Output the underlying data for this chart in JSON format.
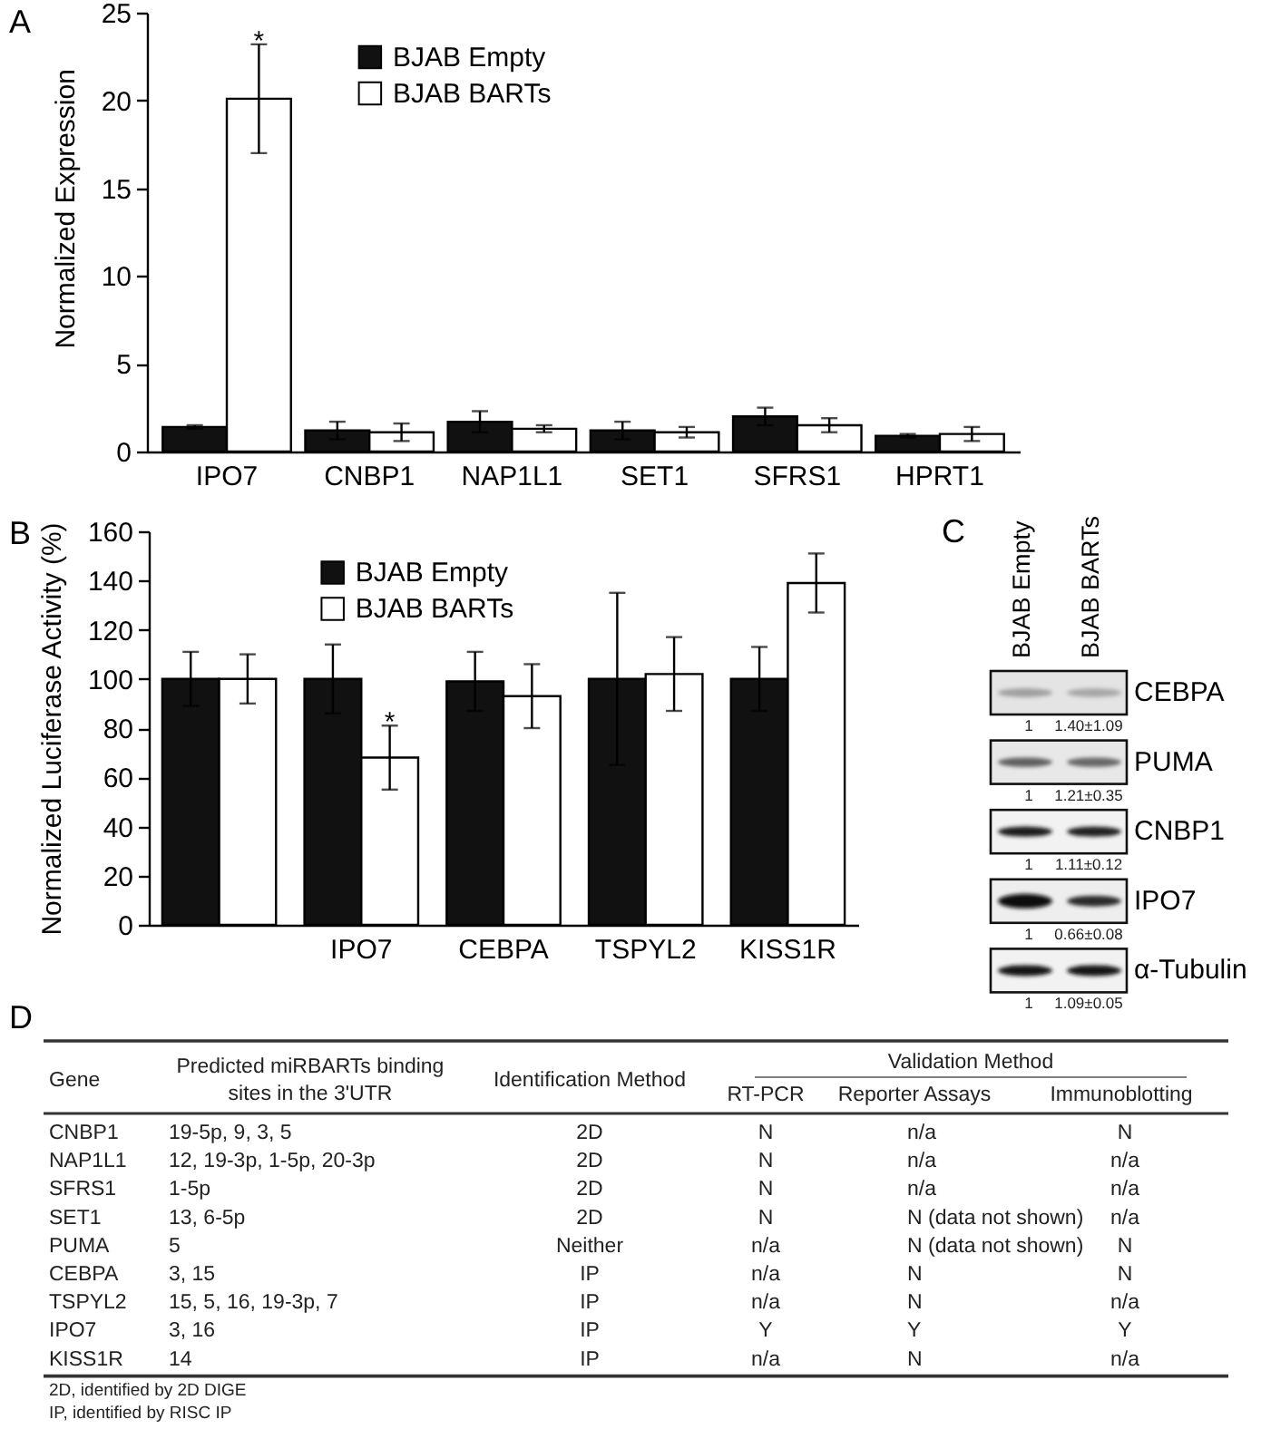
{
  "chart_data": [
    {
      "type": "bar",
      "title": "A",
      "ylabel": "Normalized Expression",
      "categories": [
        "IPO7",
        "CNBP1",
        "NAP1L1",
        "SET1",
        "SFRS1",
        "HPRT1"
      ],
      "series": [
        {
          "name": "BJAB Empty",
          "color": "#111111",
          "values": [
            1.4,
            1.2,
            1.7,
            1.2,
            2.0,
            0.9
          ],
          "errors": [
            0.1,
            0.5,
            0.6,
            0.5,
            0.5,
            0.1
          ]
        },
        {
          "name": "BJAB BARTs",
          "color": "#ffffff",
          "values": [
            20.1,
            1.1,
            1.3,
            1.1,
            1.5,
            1.0
          ],
          "errors": [
            3.1,
            0.5,
            0.2,
            0.3,
            0.4,
            0.4
          ]
        }
      ],
      "ylim": [
        0,
        25
      ],
      "yticks": [
        0,
        5,
        10,
        15,
        20,
        25
      ],
      "legend": "top",
      "annotations": [
        {
          "text": "*",
          "x": "IPO7",
          "y": 20.1
        }
      ]
    },
    {
      "type": "bar",
      "title": "B",
      "ylabel": "Normalized Luciferase Activity (%)",
      "categories": [
        null,
        "IPO7",
        "CEBPA",
        "TSPYL2",
        "KISS1R"
      ],
      "series": [
        {
          "name": "BJAB Empty",
          "color": "#111111",
          "values": [
            100,
            100,
            99,
            100,
            100
          ],
          "errors": [
            11,
            14,
            12,
            35,
            13
          ]
        },
        {
          "name": "BJAB BARTs",
          "color": "#ffffff",
          "values": [
            100,
            68,
            93,
            102,
            139
          ],
          "errors": [
            10,
            13,
            13,
            15,
            12
          ]
        }
      ],
      "ylim": [
        0,
        160
      ],
      "yticks": [
        0,
        20,
        40,
        60,
        80,
        100,
        120,
        140,
        160
      ],
      "legend": "top",
      "annotations": [
        {
          "text": "*",
          "x": "IPO7",
          "y": 68
        }
      ]
    },
    {
      "type": "other",
      "title": "C",
      "categories": [
        "BJAB Empty",
        "BJAB BARTs"
      ],
      "y_categories": [
        "CEBPA",
        "PUMA",
        "CNBP1",
        "IPO7",
        "α-Tubulin"
      ],
      "cell_labels": [
        [
          "1",
          "1.40±1.09"
        ],
        [
          "1",
          "1.21±0.35"
        ],
        [
          "1",
          "1.11±0.12"
        ],
        [
          "1",
          "0.66±0.08"
        ],
        [
          "1",
          "1.09±0.05"
        ]
      ]
    },
    {
      "type": "other",
      "title": "D",
      "categories": [
        "Gene",
        "Predicted miRBARTs binding sites in the 3'UTR",
        "Identification Method",
        "RT-PCR",
        "Reporter Assays",
        "Immunoblotting"
      ],
      "x2label": "Validation Method",
      "cell_labels": [
        [
          "CNBP1",
          "19-5p, 9, 3, 5",
          "2D",
          "N",
          "n/a",
          "N"
        ],
        [
          "NAP1L1",
          "12, 19-3p, 1-5p, 20-3p",
          "2D",
          "N",
          "n/a",
          "n/a"
        ],
        [
          "SFRS1",
          "1-5p",
          "2D",
          "N",
          "n/a",
          "n/a"
        ],
        [
          "SET1",
          "13, 6-5p",
          "2D",
          "N",
          "N (data not shown)",
          "n/a"
        ],
        [
          "PUMA",
          "5",
          "Neither",
          "n/a",
          "N (data not shown)",
          "N"
        ],
        [
          "CEBPA",
          "3, 15",
          "IP",
          "n/a",
          "N",
          "N"
        ],
        [
          "TSPYL2",
          "15, 5, 16, 19-3p, 7",
          "IP",
          "n/a",
          "N",
          "n/a"
        ],
        [
          "IPO7",
          "3, 16",
          "IP",
          "Y",
          "Y",
          "Y"
        ],
        [
          "KISS1R",
          "14",
          "IP",
          "n/a",
          "N",
          "n/a"
        ]
      ],
      "annotations": [
        "2D, identified by 2D DIGE",
        "IP, identified by RISC IP"
      ]
    }
  ]
}
